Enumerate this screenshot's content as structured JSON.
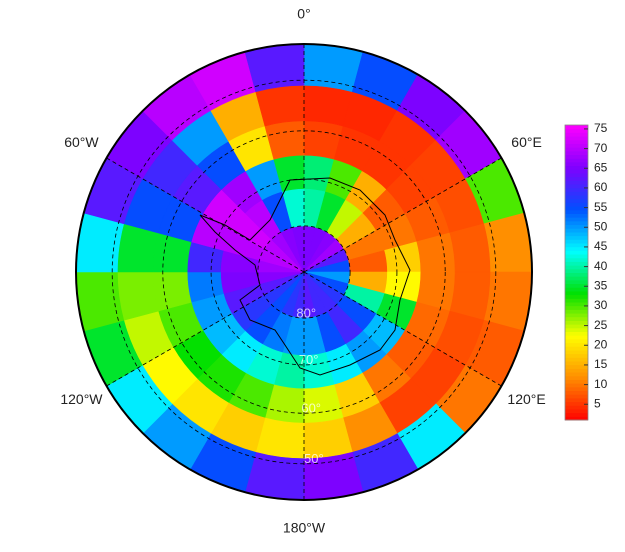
{
  "chart_data": {
    "type": "polar-heatmap",
    "lon_labels": [
      {
        "value": 0,
        "label": "0°"
      },
      {
        "value": 60,
        "label": "60°E"
      },
      {
        "value": 120,
        "label": "120°E"
      },
      {
        "value": 180,
        "label": "180°W"
      },
      {
        "value": -120,
        "label": "120°W"
      },
      {
        "value": -60,
        "label": "60°W"
      }
    ],
    "lat_labels": [
      {
        "value": -80,
        "label": "80°"
      },
      {
        "value": -70,
        "label": "70°"
      },
      {
        "value": -60,
        "label": "60°"
      },
      {
        "value": -50,
        "label": "50°"
      }
    ],
    "lat_edges": [
      -90,
      -80,
      -72,
      -65,
      -58,
      -51,
      -43
    ],
    "rings": [
      [
        65,
        65,
        66,
        68,
        62,
        55,
        50,
        55,
        58,
        60,
        60,
        62,
        60,
        58,
        55,
        58,
        62,
        66,
        68,
        70,
        70,
        68,
        66,
        65
      ],
      [
        40,
        35,
        25,
        15,
        10,
        8,
        15,
        40,
        55,
        60,
        55,
        50,
        50,
        52,
        55,
        58,
        62,
        65,
        66,
        70,
        72,
        70,
        55,
        42
      ],
      [
        38,
        30,
        15,
        8,
        10,
        18,
        22,
        35,
        48,
        50,
        45,
        42,
        40,
        42,
        45,
        48,
        50,
        52,
        60,
        70,
        72,
        68,
        50,
        35
      ],
      [
        6,
        5,
        5,
        6,
        8,
        10,
        10,
        9,
        8,
        10,
        18,
        24,
        26,
        30,
        32,
        33,
        30,
        28,
        35,
        55,
        62,
        55,
        20,
        8
      ],
      [
        4,
        4,
        5,
        6,
        7,
        8,
        8,
        7,
        6,
        6,
        12,
        18,
        20,
        18,
        20,
        22,
        25,
        28,
        35,
        55,
        60,
        50,
        15,
        5
      ],
      [
        50,
        55,
        65,
        68,
        30,
        12,
        10,
        8,
        10,
        45,
        60,
        65,
        62,
        55,
        50,
        45,
        35,
        30,
        45,
        62,
        65,
        70,
        72,
        62
      ]
    ],
    "clim": [
      1,
      76
    ],
    "cticks": [
      5,
      10,
      15,
      20,
      25,
      30,
      35,
      40,
      45,
      50,
      55,
      60,
      65,
      70,
      75
    ],
    "colormap": [
      "#ff0000",
      "#ff8c00",
      "#ffff00",
      "#00e000",
      "#00ffff",
      "#0050ff",
      "#8000ff",
      "#ff00ff"
    ]
  }
}
